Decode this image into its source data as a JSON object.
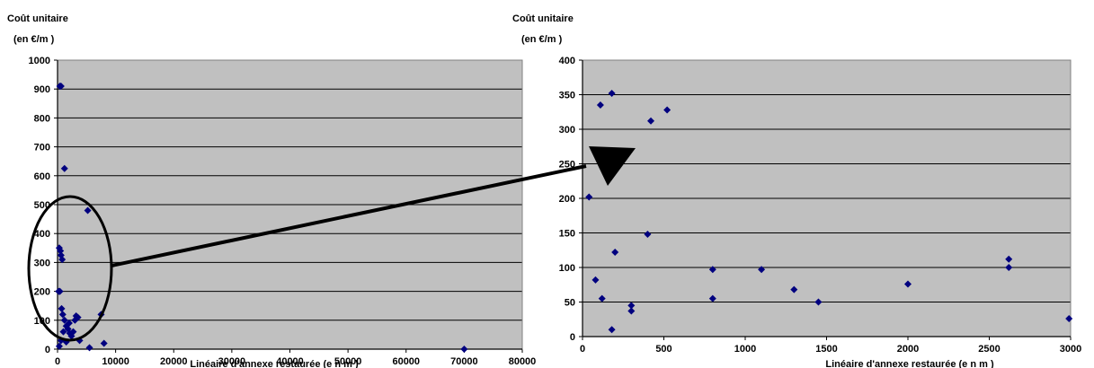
{
  "chart_data": [
    {
      "type": "scatter",
      "title_line1": "Coût unitaire",
      "title_line2": "(en €/m )",
      "xlabel": "Linéaire d'annexe restaurée (e n m )",
      "xlim": [
        0,
        80000
      ],
      "ylim": [
        0,
        1000
      ],
      "x_ticks": [
        0,
        10000,
        20000,
        30000,
        40000,
        50000,
        60000,
        70000,
        80000
      ],
      "x_tick_labels": [
        "0",
        "10000",
        "20000",
        "30000",
        "40000",
        "50000",
        "60000",
        "70000",
        "80000"
      ],
      "y_ticks": [
        0,
        100,
        200,
        300,
        400,
        500,
        600,
        700,
        800,
        900,
        1000
      ],
      "y_tick_labels": [
        "0",
        "100",
        "200",
        "300",
        "400",
        "500",
        "600",
        "700",
        "800",
        "900",
        "1000"
      ],
      "grid": true,
      "marker_color": "#00007f",
      "plot_bg": "#c0c0c0",
      "points": [
        [
          400,
          910
        ],
        [
          600,
          910
        ],
        [
          1200,
          625
        ],
        [
          5200,
          480
        ],
        [
          300,
          350
        ],
        [
          500,
          340
        ],
        [
          600,
          325
        ],
        [
          800,
          310
        ],
        [
          200,
          200
        ],
        [
          400,
          200
        ],
        [
          700,
          140
        ],
        [
          900,
          120
        ],
        [
          1200,
          100
        ],
        [
          1500,
          80
        ],
        [
          1800,
          70
        ],
        [
          2100,
          55
        ],
        [
          2400,
          45
        ],
        [
          2700,
          60
        ],
        [
          3000,
          100
        ],
        [
          3200,
          115
        ],
        [
          3500,
          110
        ],
        [
          2000,
          90
        ],
        [
          1000,
          60
        ],
        [
          600,
          30
        ],
        [
          1500,
          25
        ],
        [
          3800,
          30
        ],
        [
          300,
          10
        ],
        [
          7500,
          120
        ],
        [
          8000,
          20
        ],
        [
          5500,
          5
        ],
        [
          70000,
          0
        ]
      ]
    },
    {
      "type": "scatter",
      "title_line1": "Coût unitaire",
      "title_line2": "(en €/m )",
      "xlabel": "Linéaire d'annexe restaurée (e n m )",
      "xlim": [
        0,
        3000
      ],
      "ylim": [
        0,
        400
      ],
      "x_ticks": [
        0,
        500,
        1000,
        1500,
        2000,
        2500,
        3000
      ],
      "x_tick_labels": [
        "0",
        "500",
        "1000",
        "1500",
        "2000",
        "2500",
        "3000"
      ],
      "y_ticks": [
        0,
        50,
        100,
        150,
        200,
        250,
        300,
        350,
        400
      ],
      "y_tick_labels": [
        "0",
        "50",
        "100",
        "150",
        "200",
        "250",
        "300",
        "350",
        "400"
      ],
      "grid": true,
      "marker_color": "#00007f",
      "plot_bg": "#c0c0c0",
      "points": [
        [
          180,
          352
        ],
        [
          110,
          335
        ],
        [
          520,
          328
        ],
        [
          420,
          312
        ],
        [
          40,
          202
        ],
        [
          200,
          122
        ],
        [
          400,
          148
        ],
        [
          80,
          82
        ],
        [
          120,
          55
        ],
        [
          300,
          45
        ],
        [
          300,
          37
        ],
        [
          180,
          10
        ],
        [
          800,
          97
        ],
        [
          800,
          55
        ],
        [
          1100,
          97
        ],
        [
          1300,
          68
        ],
        [
          1450,
          50
        ],
        [
          2000,
          76
        ],
        [
          2620,
          112
        ],
        [
          2620,
          100
        ],
        [
          2990,
          26
        ]
      ]
    }
  ]
}
